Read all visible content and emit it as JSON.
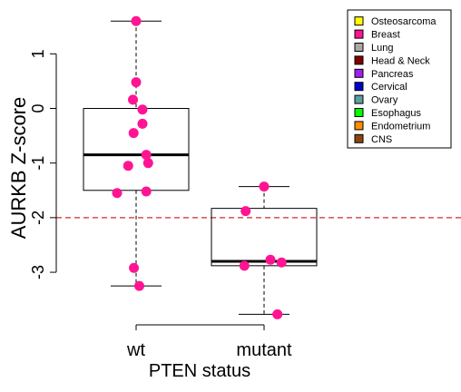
{
  "chart_data": {
    "type": "box",
    "xlabel": "PTEN status",
    "ylabel": "AURKB Z-score",
    "categories": [
      "wt",
      "mutant"
    ],
    "ylim": [
      -3.78,
      1.62
    ],
    "yticks": [
      1,
      0,
      -1,
      -2,
      -3
    ],
    "ytick_labels": [
      "1",
      "0",
      "-1",
      "-2",
      "-3"
    ],
    "reference_line": {
      "y": -2,
      "color": "#d62728",
      "style": "dashed"
    },
    "boxes": [
      {
        "category": "wt",
        "whisker_low": -3.25,
        "q1": -1.5,
        "median": -0.85,
        "q3": 0.0,
        "whisker_high": 1.6
      },
      {
        "category": "mutant",
        "whisker_low": -3.77,
        "q1": -2.88,
        "median": -2.8,
        "q3": -1.83,
        "whisker_high": -1.43
      }
    ],
    "points": [
      {
        "category": "wt",
        "jitter": 0.0,
        "y": 1.6,
        "color": "#ff1493"
      },
      {
        "category": "wt",
        "jitter": 0.0,
        "y": 0.48,
        "color": "#ff1493"
      },
      {
        "category": "wt",
        "jitter": -0.1,
        "y": 0.16,
        "color": "#ff1493"
      },
      {
        "category": "wt",
        "jitter": 0.2,
        "y": -0.02,
        "color": "#ff1493"
      },
      {
        "category": "wt",
        "jitter": 0.2,
        "y": -0.28,
        "color": "#ff1493"
      },
      {
        "category": "wt",
        "jitter": -0.08,
        "y": -0.45,
        "color": "#ff1493"
      },
      {
        "category": "wt",
        "jitter": 0.32,
        "y": -0.85,
        "color": "#ff1493"
      },
      {
        "category": "wt",
        "jitter": 0.38,
        "y": -1.0,
        "color": "#ff1493"
      },
      {
        "category": "wt",
        "jitter": -0.25,
        "y": -1.05,
        "color": "#ff1493"
      },
      {
        "category": "wt",
        "jitter": -0.6,
        "y": -1.55,
        "color": "#ff1493"
      },
      {
        "category": "wt",
        "jitter": 0.32,
        "y": -1.52,
        "color": "#ff1493"
      },
      {
        "category": "wt",
        "jitter": -0.07,
        "y": -2.92,
        "color": "#ff1493"
      },
      {
        "category": "wt",
        "jitter": 0.1,
        "y": -3.25,
        "color": "#ff1493"
      },
      {
        "category": "mutant",
        "jitter": 0.0,
        "y": -1.43,
        "color": "#ff1493"
      },
      {
        "category": "mutant",
        "jitter": -0.58,
        "y": -1.88,
        "color": "#ff1493"
      },
      {
        "category": "mutant",
        "jitter": -0.62,
        "y": -2.88,
        "color": "#ff1493"
      },
      {
        "category": "mutant",
        "jitter": 0.2,
        "y": -2.77,
        "color": "#ff1493"
      },
      {
        "category": "mutant",
        "jitter": 0.55,
        "y": -2.82,
        "color": "#ff1493"
      },
      {
        "category": "mutant",
        "jitter": 0.42,
        "y": -3.77,
        "color": "#ff1493"
      }
    ],
    "legend": {
      "placement": "top-right",
      "entries": [
        {
          "label": "Osteosarcoma",
          "color": "#ffff00"
        },
        {
          "label": "Breast",
          "color": "#ff1493"
        },
        {
          "label": "Lung",
          "color": "#a9a9a9"
        },
        {
          "label": "Head & Neck",
          "color": "#800000"
        },
        {
          "label": "Pancreas",
          "color": "#a020f0"
        },
        {
          "label": "Cervical",
          "color": "#0000cd"
        },
        {
          "label": "Ovary",
          "color": "#5f9ea0"
        },
        {
          "label": "Esophagus",
          "color": "#00ff00"
        },
        {
          "label": "Endometrium",
          "color": "#ff8c00"
        },
        {
          "label": "CNS",
          "color": "#8b4513"
        }
      ]
    }
  }
}
